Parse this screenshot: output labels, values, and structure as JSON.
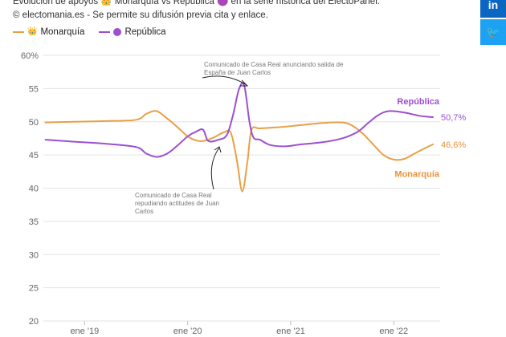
{
  "header": {
    "title": "Evolución de apoyos 👑 Monarquía vs República 🟣 en la serie histórica del ElectoPanel.",
    "credit": "© electomania.es - Se permite su difusión previa cita y enlace."
  },
  "legend": {
    "items": [
      {
        "label": "Monarquía",
        "color": "#e8a045",
        "icon": "crown-icon"
      },
      {
        "label": "República",
        "color": "#9b4fd1",
        "icon": "purple-circle-icon"
      }
    ]
  },
  "share": {
    "linkedin": "in",
    "twitter": "🐦"
  },
  "chart_data": {
    "type": "line",
    "ylim": [
      20,
      60
    ],
    "yticks": [
      "20",
      "25",
      "30",
      "35",
      "40",
      "45",
      "50",
      "55",
      "60%"
    ],
    "xlim": [
      2018.6,
      2022.45
    ],
    "xticks": [
      {
        "x": 2019.0,
        "label": "ene '19"
      },
      {
        "x": 2020.0,
        "label": "ene '20"
      },
      {
        "x": 2021.0,
        "label": "ene '21"
      },
      {
        "x": 2022.0,
        "label": "ene '22"
      }
    ],
    "grid": true,
    "series": [
      {
        "name": "Monarquía",
        "color": "#e8a045",
        "end_label": "Monarquía",
        "end_value": "46,6%",
        "points": [
          [
            2018.62,
            49.9
          ],
          [
            2018.9,
            50.0
          ],
          [
            2019.2,
            50.1
          ],
          [
            2019.5,
            50.3
          ],
          [
            2019.6,
            51.2
          ],
          [
            2019.7,
            51.6
          ],
          [
            2019.8,
            50.5
          ],
          [
            2019.9,
            49.2
          ],
          [
            2020.0,
            47.8
          ],
          [
            2020.08,
            47.2
          ],
          [
            2020.15,
            47.1
          ],
          [
            2020.25,
            47.6
          ],
          [
            2020.35,
            48.4
          ],
          [
            2020.42,
            48.3
          ],
          [
            2020.48,
            44.0
          ],
          [
            2020.53,
            39.5
          ],
          [
            2020.58,
            44.0
          ],
          [
            2020.62,
            48.8
          ],
          [
            2020.7,
            49.0
          ],
          [
            2020.9,
            49.2
          ],
          [
            2021.1,
            49.5
          ],
          [
            2021.3,
            49.8
          ],
          [
            2021.5,
            49.9
          ],
          [
            2021.6,
            49.4
          ],
          [
            2021.7,
            48.2
          ],
          [
            2021.8,
            46.6
          ],
          [
            2021.9,
            45.0
          ],
          [
            2022.0,
            44.3
          ],
          [
            2022.1,
            44.4
          ],
          [
            2022.2,
            45.2
          ],
          [
            2022.3,
            46.0
          ],
          [
            2022.38,
            46.6
          ]
        ]
      },
      {
        "name": "República",
        "color": "#9b4fd1",
        "end_label": "República",
        "end_value": "50,7%",
        "points": [
          [
            2018.62,
            47.3
          ],
          [
            2018.9,
            47.0
          ],
          [
            2019.2,
            46.7
          ],
          [
            2019.5,
            46.2
          ],
          [
            2019.6,
            45.2
          ],
          [
            2019.7,
            44.7
          ],
          [
            2019.8,
            45.2
          ],
          [
            2019.9,
            46.4
          ],
          [
            2020.0,
            47.8
          ],
          [
            2020.08,
            48.5
          ],
          [
            2020.15,
            48.8
          ],
          [
            2020.2,
            47.1
          ],
          [
            2020.3,
            47.3
          ],
          [
            2020.38,
            48.0
          ],
          [
            2020.44,
            51.0
          ],
          [
            2020.5,
            55.0
          ],
          [
            2020.55,
            55.4
          ],
          [
            2020.6,
            50.0
          ],
          [
            2020.64,
            47.6
          ],
          [
            2020.7,
            47.3
          ],
          [
            2020.8,
            46.5
          ],
          [
            2020.95,
            46.3
          ],
          [
            2021.1,
            46.6
          ],
          [
            2021.3,
            46.9
          ],
          [
            2021.5,
            47.5
          ],
          [
            2021.65,
            48.5
          ],
          [
            2021.75,
            49.8
          ],
          [
            2021.85,
            51.0
          ],
          [
            2021.95,
            51.6
          ],
          [
            2022.1,
            51.4
          ],
          [
            2022.25,
            50.9
          ],
          [
            2022.38,
            50.7
          ]
        ]
      }
    ],
    "annotations": [
      {
        "text": [
          "Comunicado de Casa Real anunciando salida de",
          "España de Juan Carlos"
        ]
      },
      {
        "text": [
          "Comunicado de Casa Real",
          "repudiando actitudes de Juan",
          "Carlos"
        ]
      }
    ]
  }
}
